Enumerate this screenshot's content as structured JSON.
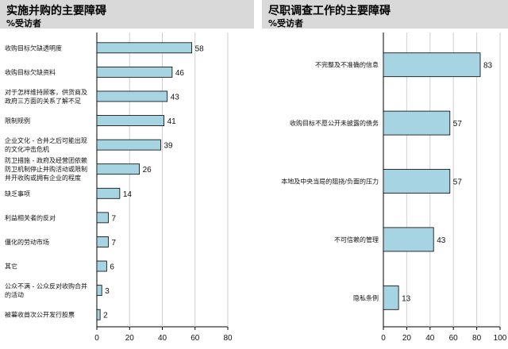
{
  "chart_data": [
    {
      "type": "bar",
      "orientation": "horizontal",
      "title": "实施并购的主要障碍",
      "subtitle": "%受访者",
      "categories": [
        [
          "收购目标欠缺透明度"
        ],
        [
          "收购目标欠缺资料"
        ],
        [
          "对于怎样维持顾客，供货商及",
          "政府三方面的关系了解不足"
        ],
        [
          "限制规例"
        ],
        [
          "企业文化 - 合并之后可能出现",
          "的文化冲击危机"
        ],
        [
          "防卫措施 - 政府及经营团依赖",
          "防卫机制停止并购活动或限制",
          "并开收购或拥有企业的程度"
        ],
        [
          "缺乏事项"
        ],
        [
          "利益相关者的反对"
        ],
        [
          "僵化的劳动市场"
        ],
        [
          "其它"
        ],
        [
          "公众不满 - 公众反对收购合并",
          "的活动"
        ],
        [
          "被暮收首次公开发行股票"
        ]
      ],
      "values": [
        58,
        46,
        43,
        41,
        39,
        26,
        14,
        7,
        7,
        6,
        3,
        2
      ],
      "xlim": [
        0,
        80
      ],
      "xticks": [
        0,
        20,
        40,
        60,
        80
      ],
      "bar_color": "#a6d4e2",
      "grid": true
    },
    {
      "type": "bar",
      "orientation": "horizontal",
      "title": "尽职调查工作的主要障碍",
      "subtitle": "%受访者",
      "categories": [
        [
          "不完整及不准确的信息"
        ],
        [
          "收购目标不愿公开未披露的债务"
        ],
        [
          "本地及中央当局的阻挠/负面的压力"
        ],
        [
          "不可信赖的管理"
        ],
        [
          "隐私条例"
        ]
      ],
      "values": [
        83,
        57,
        57,
        43,
        13
      ],
      "xlim": [
        0,
        100
      ],
      "xticks": [
        0,
        20,
        40,
        60,
        80,
        100
      ],
      "bar_color": "#a6d4e2",
      "grid": true
    }
  ]
}
